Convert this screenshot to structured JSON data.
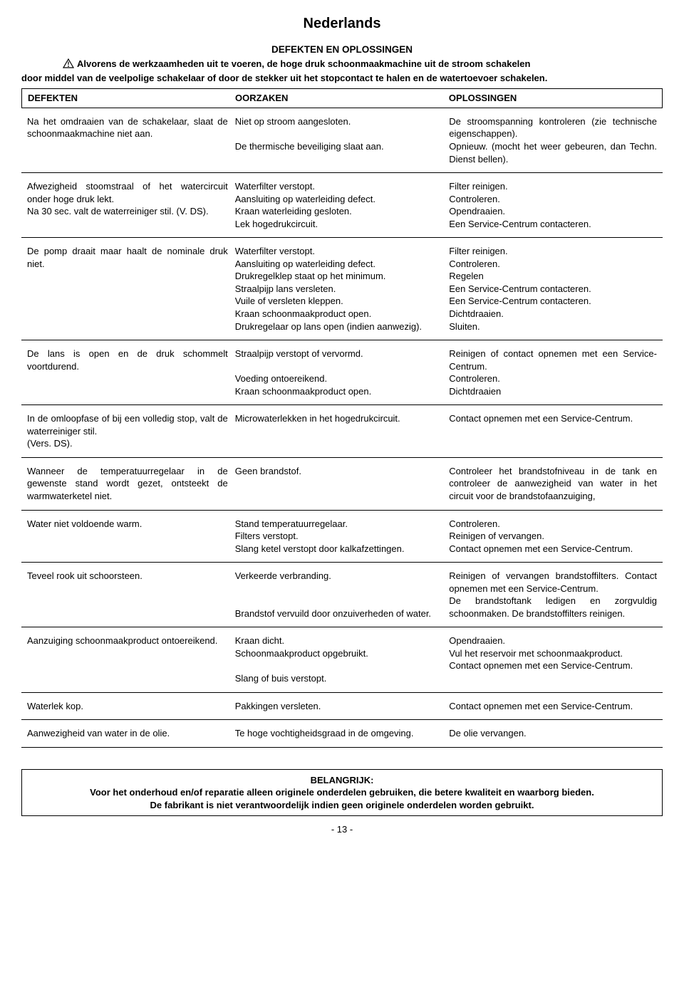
{
  "page_title": "Nederlands",
  "section_title": "DEFEKTEN EN OPLOSSINGEN",
  "intro_line1": "Alvorens de werkzaamheden uit te voeren, de hoge druk schoonmaakmachine uit de stroom schakelen",
  "intro_rest": "door middel van de veelpolige schakelaar of door de stekker uit het stopcontact te halen en de watertoevoer schakelen.",
  "headers": {
    "c1": "DEFEKTEN",
    "c2": "OORZAKEN",
    "c3": "OPLOSSINGEN"
  },
  "rows": [
    {
      "c1": "Na het omdraaien van de schakelaar, slaat de schoonmaakmachine niet aan.",
      "c2": "Niet op stroom aangesloten.\n\nDe thermische beveiliging slaat aan.",
      "c3": "De stroomspanning kontroleren (zie technische eigenschappen).\nOpnieuw. (mocht het weer gebeuren, dan Techn. Dienst bellen)."
    },
    {
      "c1": "Afwezigheid stoomstraal of het watercircuit onder hoge druk lekt.\nNa 30 sec. valt de waterreiniger stil. (V. DS).",
      "c2": "Waterfilter verstopt.\nAansluiting op waterleiding defect.\nKraan waterleiding gesloten.\nLek hogedrukcircuit.",
      "c3": "Filter reinigen.\nControleren.\nOpendraaien.\nEen Service-Centrum contacteren."
    },
    {
      "c1": "De pomp draait maar haalt de nominale druk niet.",
      "c2": "Waterfilter verstopt.\nAansluiting op waterleiding defect.\nDrukregelklep staat op het minimum.\nStraalpijp lans versleten.\nVuile of versleten kleppen.\nKraan schoonmaakproduct open.\nDrukregelaar op lans open (indien aanwezig).",
      "c3": "Filter reinigen.\nControleren.\nRegelen\nEen Service-Centrum contacteren.\nEen Service-Centrum contacteren.\nDichtdraaien.\nSluiten."
    },
    {
      "c1": "De lans is open en de druk schommelt voortdurend.",
      "c2": "Straalpijp verstopt of vervormd.\n\nVoeding ontoereikend.\nKraan schoonmaakproduct open.",
      "c3": "Reinigen of contact opnemen met een Service-Centrum.\nControleren.\nDichtdraaien"
    },
    {
      "c1": "In de omloopfase of bij een volledig stop, valt de waterreiniger stil.\n(Vers. DS).",
      "c2": "Microwaterlekken in het hogedrukcircuit.",
      "c3": "Contact opnemen met een Service-Centrum."
    },
    {
      "c1": "Wanneer de temperatuurregelaar in de gewenste stand wordt gezet, ontsteekt de warmwaterketel niet.",
      "c2": "Geen brandstof.",
      "c3": "Controleer het brandstofniveau in de tank en controleer de aanwezigheid van water in het circuit voor de brandstofaanzuiging,"
    },
    {
      "c1": "Water niet voldoende warm.",
      "c2": "Stand temperatuurregelaar.\nFilters verstopt.\nSlang ketel verstopt door kalkafzettingen.",
      "c3": "Controleren.\nReinigen of vervangen.\nContact opnemen met een Service-Centrum."
    },
    {
      "c1": "Teveel rook uit schoorsteen.",
      "c2": "Verkeerde verbranding.\n\n\nBrandstof vervuild door onzuiverheden of water.",
      "c3": "Reinigen of vervangen brandstoffilters. Contact opnemen met een Service-Centrum.\nDe brandstoftank ledigen en zorgvuldig schoonmaken. De brandstoffilters reinigen."
    },
    {
      "c1": "Aanzuiging schoonmaakproduct ontoereikend.",
      "c2": "Kraan dicht.\nSchoonmaakproduct opgebruikt.\n\nSlang of buis verstopt.",
      "c3": "Opendraaien.\nVul het reservoir met schoonmaakproduct.\nContact opnemen met een Service-Centrum."
    },
    {
      "c1": "Waterlek kop.",
      "c2": "Pakkingen versleten.",
      "c3": "Contact opnemen met een Service-Centrum."
    },
    {
      "c1": "Aanwezigheid van water in de olie.",
      "c2": "Te hoge vochtigheidsgraad in de omgeving.",
      "c3": "De olie vervangen."
    }
  ],
  "important": {
    "title": "BELANGRIJK:",
    "line1": "Voor het onderhoud en/of reparatie alleen originele onderdelen gebruiken, die betere kwaliteit en waarborg bieden.",
    "line2": "De fabrikant is niet verantwoordelijk indien geen originele onderdelen worden gebruikt."
  },
  "pagenum": "- 13 -"
}
